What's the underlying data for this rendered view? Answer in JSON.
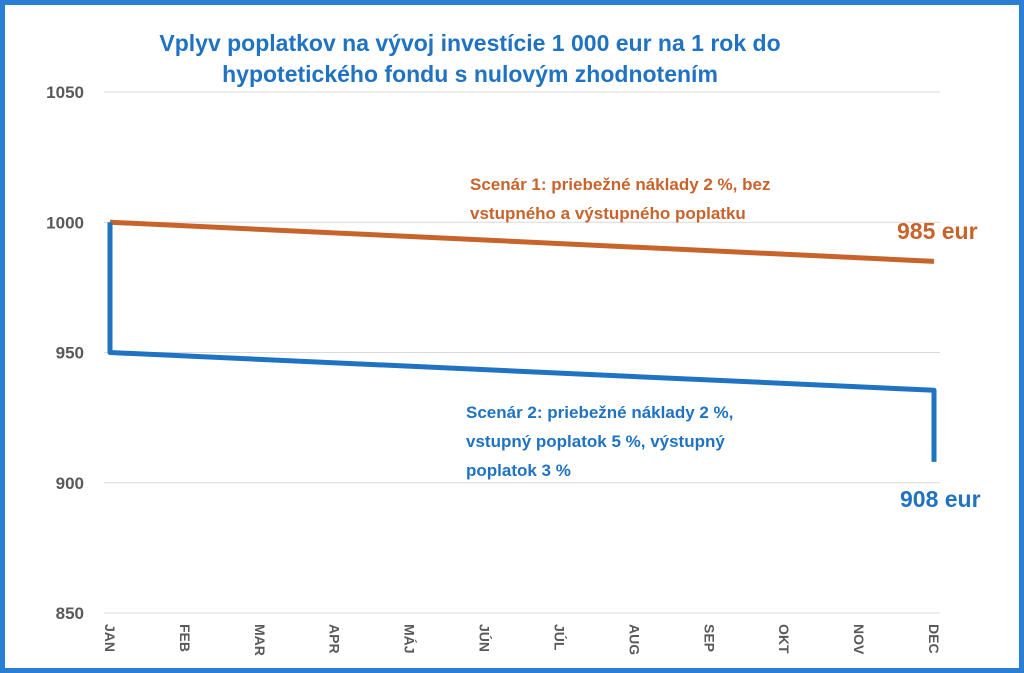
{
  "chart_data": {
    "type": "line",
    "title_lines": [
      "Vplyv poplatkov na vývoj investície 1 000 eur na 1 rok do",
      "hypotetického fondu s nulovým zhodnotením"
    ],
    "categories": [
      "JAN",
      "FEB",
      "MAR",
      "APR",
      "MÁJ",
      "JÚN",
      "JÚL",
      "AUG",
      "SEP",
      "OKT",
      "NOV",
      "DEC"
    ],
    "y_ticks": [
      850,
      900,
      950,
      1000,
      1050
    ],
    "ylim": [
      850,
      1050
    ],
    "grid": true,
    "series": [
      {
        "color": "#c8632c",
        "points": [
          {
            "x": "JAN",
            "y": 1000
          },
          {
            "x": "DEC",
            "y": 985
          }
        ]
      },
      {
        "color": "#1f73c2",
        "points": [
          {
            "x": "JAN",
            "y": 1000
          },
          {
            "x": "JAN",
            "y": 950
          },
          {
            "x": "DEC",
            "y": 935.5
          },
          {
            "x": "DEC",
            "y": 908
          }
        ]
      }
    ],
    "annotations": {
      "scenario1_lines": [
        "Scenár 1: priebežné náklady 2 %, bez",
        "vstupného a výstupného poplatku"
      ],
      "scenario2_lines": [
        "Scenár 2: priebežné náklady 2 %,",
        "vstupný poplatok 5 %, výstupný",
        "poplatok 3 %"
      ],
      "end_label_1": "985 eur",
      "end_label_2": "908 eur"
    }
  },
  "colors": {
    "frame": "#2a7fd4",
    "title": "#1f73c2",
    "scenario1": "#c8632c",
    "scenario2": "#1f73c2",
    "grid": "#d9d9d9",
    "axis_text": "#595959"
  }
}
